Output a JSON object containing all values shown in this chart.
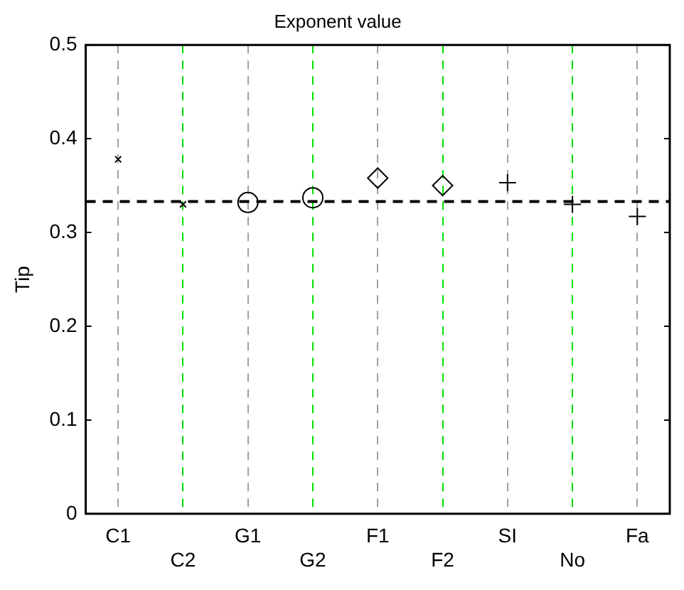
{
  "chart_data": {
    "type": "scatter",
    "title": "Exponent value",
    "ylabel": "Tip",
    "categories": [
      "C1",
      "C2",
      "G1",
      "G2",
      "F1",
      "F2",
      "SI",
      "No",
      "Fa"
    ],
    "series": [
      {
        "color": "#000000",
        "marker": "cross",
        "values": [
          0.378,
          0.33,
          null,
          null,
          null,
          null,
          null,
          null,
          null
        ]
      },
      {
        "color": "#000000",
        "marker": "circle",
        "values": [
          null,
          null,
          0.332,
          0.337,
          null,
          null,
          null,
          null,
          null
        ]
      },
      {
        "color": "#000000",
        "marker": "diamond",
        "values": [
          null,
          null,
          null,
          null,
          0.358,
          0.35,
          null,
          null,
          null
        ]
      },
      {
        "color": "#000000",
        "marker": "plus",
        "values": [
          null,
          null,
          null,
          null,
          null,
          null,
          0.353,
          0.33,
          0.317
        ]
      }
    ],
    "ylim": [
      0,
      0.5
    ],
    "yticks": [
      0,
      0.1,
      0.2,
      0.3,
      0.4,
      0.5
    ],
    "grid": "x",
    "legend": false,
    "ref_lines": [
      {
        "axis": "y",
        "value": 0.333,
        "color": "#000000",
        "line_style": "dashed"
      }
    ]
  }
}
